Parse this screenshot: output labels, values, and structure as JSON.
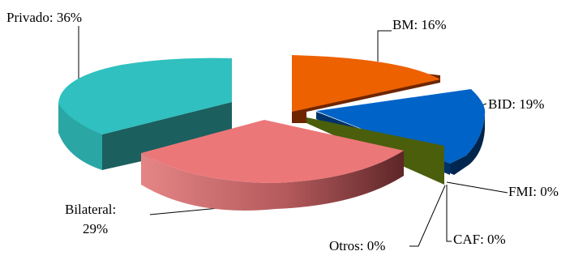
{
  "chart_data": {
    "type": "pie",
    "style": "3d-exploded",
    "title": "",
    "slices": [
      {
        "key": "bm",
        "label": "BM: 16%",
        "value": 16,
        "color": "#ED6100"
      },
      {
        "key": "bid",
        "label": "BID: 19%",
        "value": 19,
        "color": "#0063C8"
      },
      {
        "key": "fmi",
        "label": "FMI: 0%",
        "value": 0,
        "color": "#4A5E0C"
      },
      {
        "key": "caf",
        "label": "CAF: 0%",
        "value": 0,
        "color": "#4A5E0C"
      },
      {
        "key": "otros",
        "label": "Otros: 0%",
        "value": 0,
        "color": "#4A5E0C"
      },
      {
        "key": "bilateral",
        "label": [
          "Bilateral:",
          "29%"
        ],
        "value": 29,
        "color": "#EC7779"
      },
      {
        "key": "privado",
        "label": "Privado: 36%",
        "value": 36,
        "color": "#2FC0BF"
      }
    ],
    "legend": "none"
  }
}
